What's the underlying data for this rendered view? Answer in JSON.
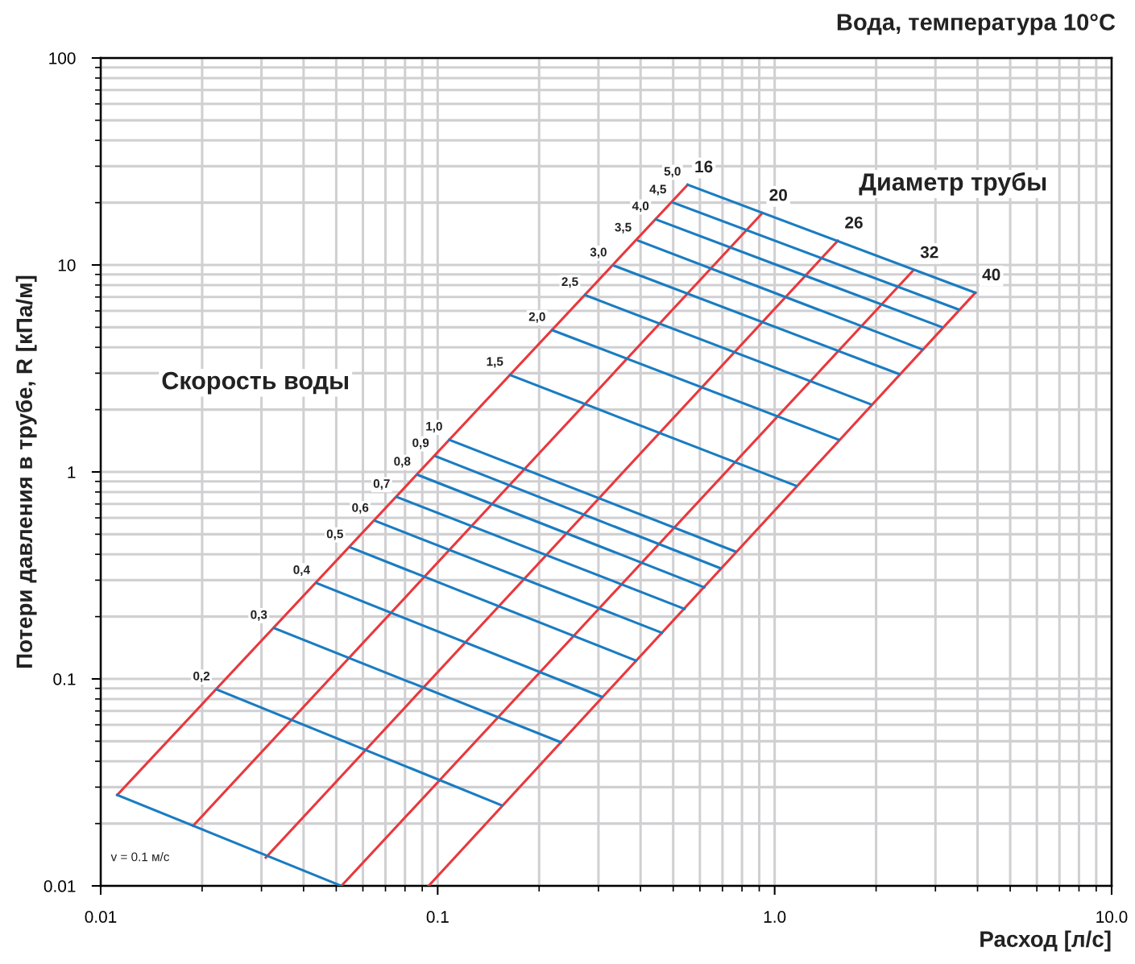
{
  "chart_data": {
    "type": "line",
    "title": "Вода, температура 10°C",
    "xlabel": "Расход [л/с]",
    "ylabel": "Потери давления в трубе, R [кПа/м]",
    "log": "xy",
    "grid": true,
    "marker": "none",
    "line_style": "solid",
    "xlim": [
      0.01,
      10
    ],
    "ylim": [
      0.01,
      100
    ],
    "xticks": [
      0.01,
      0.1,
      {
        "value": 1,
        "label": "1.0"
      },
      {
        "value": 10,
        "label": "10.0"
      }
    ],
    "yticks": [
      0.01,
      0.1,
      1,
      10,
      100
    ],
    "annotations": [
      "Скорость воды",
      "Диаметр трубы",
      "v = 0.1 м/с"
    ],
    "series": [
      {
        "name": "16",
        "color": "#e8383d",
        "x": [
          0.0112,
          0.552
        ],
        "values": [
          0.0275,
          24.4
        ]
      },
      {
        "name": "20",
        "color": "#e8383d",
        "x": [
          0.0188,
          0.919
        ],
        "values": [
          0.0195,
          17.8
        ]
      },
      {
        "name": "26",
        "color": "#e8383d",
        "x": [
          0.0309,
          1.54
        ],
        "values": [
          0.0137,
          13.1
        ]
      },
      {
        "name": "32",
        "color": "#e8383d",
        "x": [
          0.0518,
          2.58
        ],
        "values": [
          0.01,
          9.42
        ]
      },
      {
        "name": "40",
        "color": "#e8383d",
        "x": [
          0.094,
          3.94
        ],
        "values": [
          0.01,
          7.34
        ]
      },
      {
        "color": "#1a7cc1",
        "x": [
          0.0112,
          0.0518
        ],
        "values": [
          0.0275,
          0.01
        ]
      },
      {
        "name": "0,2",
        "color": "#1a7cc1",
        "x": [
          0.0221,
          0.155
        ],
        "values": [
          0.0889,
          0.0245
        ]
      },
      {
        "name": "0,3",
        "color": "#1a7cc1",
        "x": [
          0.0327,
          0.232
        ],
        "values": [
          0.176,
          0.0494
        ]
      },
      {
        "name": "0,4",
        "color": "#1a7cc1",
        "x": [
          0.0438,
          0.307
        ],
        "values": [
          0.29,
          0.082
        ]
      },
      {
        "name": "0,5",
        "color": "#1a7cc1",
        "x": [
          0.055,
          0.388
        ],
        "values": [
          0.432,
          0.1225
        ]
      },
      {
        "name": "0,6",
        "color": "#1a7cc1",
        "x": [
          0.0654,
          0.463
        ],
        "values": [
          0.579,
          0.167
        ]
      },
      {
        "name": "0,7",
        "color": "#1a7cc1",
        "x": [
          0.0757,
          0.54
        ],
        "values": [
          0.756,
          0.218
        ]
      },
      {
        "name": "0,8",
        "color": "#1a7cc1",
        "x": [
          0.0871,
          0.618
        ],
        "values": [
          0.969,
          0.277
        ]
      },
      {
        "name": "0,9",
        "color": "#1a7cc1",
        "x": [
          0.0988,
          0.689
        ],
        "values": [
          1.19,
          0.343
        ]
      },
      {
        "name": "1,0",
        "color": "#1a7cc1",
        "x": [
          0.1083,
          0.763
        ],
        "values": [
          1.43,
          0.413
        ]
      },
      {
        "name": "1,5",
        "color": "#1a7cc1",
        "x": [
          0.164,
          1.16
        ],
        "values": [
          2.94,
          0.856
        ]
      },
      {
        "name": "2,0",
        "color": "#1a7cc1",
        "x": [
          0.219,
          1.55
        ],
        "values": [
          4.84,
          1.43
        ]
      },
      {
        "name": "2,5",
        "color": "#1a7cc1",
        "x": [
          0.274,
          1.93
        ],
        "values": [
          7.15,
          2.12
        ]
      },
      {
        "name": "3,0",
        "color": "#1a7cc1",
        "x": [
          0.333,
          2.34
        ],
        "values": [
          9.93,
          2.97
        ]
      },
      {
        "name": "3,5",
        "color": "#1a7cc1",
        "x": [
          0.394,
          2.74
        ],
        "values": [
          13.1,
          3.91
        ]
      },
      {
        "name": "4,0",
        "color": "#1a7cc1",
        "x": [
          0.444,
          3.13
        ],
        "values": [
          16.6,
          5.01
        ]
      },
      {
        "name": "4,5",
        "color": "#1a7cc1",
        "x": [
          0.5,
          3.51
        ],
        "values": [
          20.0,
          6.1
        ]
      },
      {
        "name": "5,0",
        "color": "#1a7cc1",
        "x": [
          0.552,
          3.94
        ],
        "values": [
          24.4,
          7.34
        ]
      }
    ]
  }
}
